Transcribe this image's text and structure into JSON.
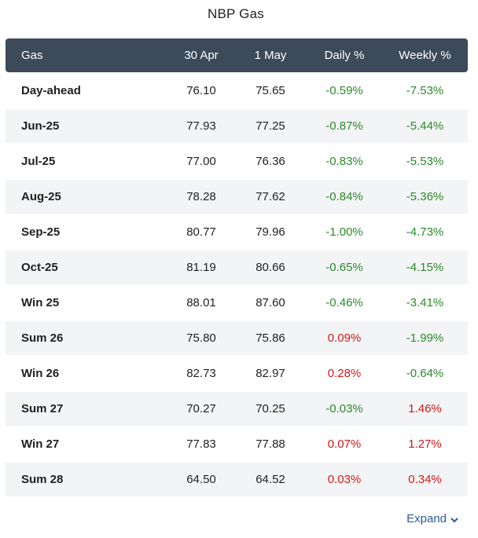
{
  "title": "NBP Gas",
  "header": {
    "name": "Gas",
    "col1": "30 Apr",
    "col2": "1 May",
    "daily": "Daily %",
    "weekly": "Weekly %"
  },
  "rows": [
    {
      "name": "Day-ahead",
      "c1": "76.10",
      "c2": "75.65",
      "daily": "-0.59%",
      "weekly": "-7.53%"
    },
    {
      "name": "Jun-25",
      "c1": "77.93",
      "c2": "77.25",
      "daily": "-0.87%",
      "weekly": "-5.44%"
    },
    {
      "name": "Jul-25",
      "c1": "77.00",
      "c2": "76.36",
      "daily": "-0.83%",
      "weekly": "-5.53%"
    },
    {
      "name": "Aug-25",
      "c1": "78.28",
      "c2": "77.62",
      "daily": "-0.84%",
      "weekly": "-5.36%"
    },
    {
      "name": "Sep-25",
      "c1": "80.77",
      "c2": "79.96",
      "daily": "-1.00%",
      "weekly": "-4.73%"
    },
    {
      "name": "Oct-25",
      "c1": "81.19",
      "c2": "80.66",
      "daily": "-0.65%",
      "weekly": "-4.15%"
    },
    {
      "name": "Win 25",
      "c1": "88.01",
      "c2": "87.60",
      "daily": "-0.46%",
      "weekly": "-3.41%"
    },
    {
      "name": "Sum 26",
      "c1": "75.80",
      "c2": "75.86",
      "daily": "0.09%",
      "weekly": "-1.99%"
    },
    {
      "name": "Win 26",
      "c1": "82.73",
      "c2": "82.97",
      "daily": "0.28%",
      "weekly": "-0.64%"
    },
    {
      "name": "Sum 27",
      "c1": "70.27",
      "c2": "70.25",
      "daily": "-0.03%",
      "weekly": "1.46%"
    },
    {
      "name": "Win 27",
      "c1": "77.83",
      "c2": "77.88",
      "daily": "0.07%",
      "weekly": "1.27%"
    },
    {
      "name": "Sum 28",
      "c1": "64.50",
      "c2": "64.52",
      "daily": "0.03%",
      "weekly": "0.34%"
    }
  ],
  "expand": {
    "label": "Expand",
    "icon": "chevron-down-icon"
  },
  "colors": {
    "header_bg": "#3c4a5a",
    "negative": "#2a8a2a",
    "positive": "#d01919",
    "link": "#2b5c9c",
    "stripe": "#f3f4f6"
  }
}
